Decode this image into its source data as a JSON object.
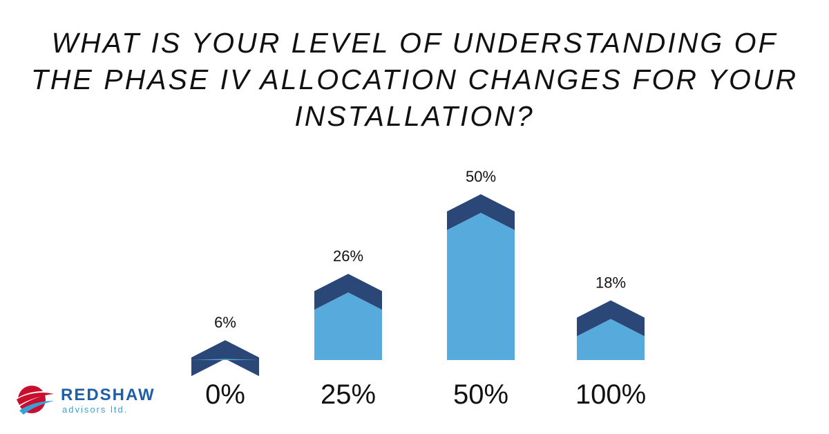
{
  "title": "WHAT IS YOUR LEVEL OF UNDERSTANDING OF THE PHASE IV ALLOCATION CHANGES FOR YOUR INSTALLATION?",
  "logo": {
    "name": "REDSHAW",
    "tagline": "advisors ltd."
  },
  "colors": {
    "bar": "#57aadc",
    "cap": "#2b4777",
    "text": "#111111"
  },
  "chart_data": {
    "type": "bar",
    "title": "WHAT IS YOUR LEVEL OF UNDERSTANDING OF THE PHASE IV ALLOCATION CHANGES FOR YOUR INSTALLATION?",
    "categories": [
      "0%",
      "25%",
      "50%",
      "100%"
    ],
    "values": [
      6,
      26,
      50,
      18
    ],
    "data_labels": [
      "6%",
      "26%",
      "50%",
      "18%"
    ],
    "ylim": [
      0,
      50
    ],
    "grid": false,
    "legend": "none"
  }
}
